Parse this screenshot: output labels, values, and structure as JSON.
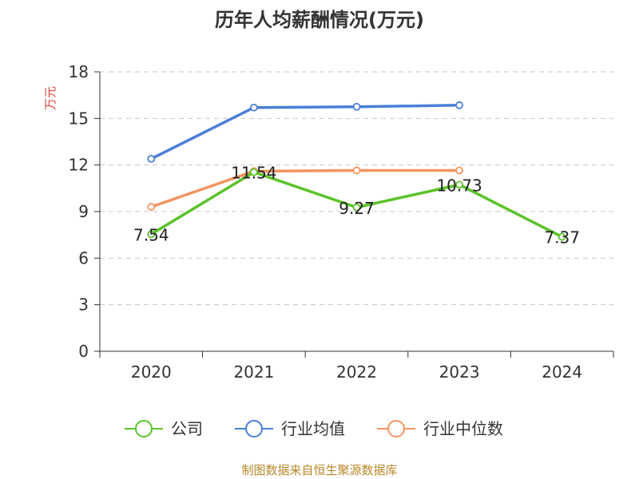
{
  "chart_data": {
    "type": "line",
    "title": "历年人均薪酬情况(万元)",
    "ylabel": "万元",
    "xlabel": "",
    "categories": [
      "2020",
      "2021",
      "2022",
      "2023",
      "2024"
    ],
    "ylim": [
      0,
      18
    ],
    "yticks": [
      0,
      3,
      6,
      9,
      12,
      15,
      18
    ],
    "grid": true,
    "legend_position": "bottom",
    "series": [
      {
        "name": "公司",
        "color": "#5cc22a",
        "values": [
          7.54,
          11.54,
          9.27,
          10.73,
          7.37
        ],
        "labels": [
          "7.54",
          "11.54",
          "9.27",
          "10.73",
          "7.37"
        ]
      },
      {
        "name": "行业均值",
        "color": "#4a7fd8",
        "values": [
          12.4,
          15.7,
          15.75,
          15.85,
          null
        ]
      },
      {
        "name": "行业中位数",
        "color": "#f59460",
        "values": [
          9.3,
          11.6,
          11.65,
          11.65,
          null
        ]
      }
    ]
  },
  "source": "制图数据来自恒生聚源数据库"
}
